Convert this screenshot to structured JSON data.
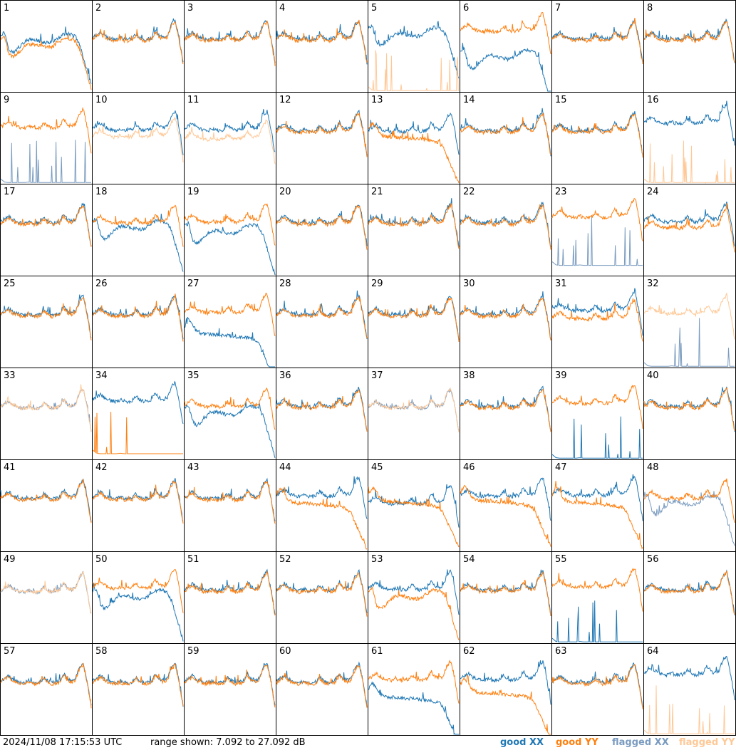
{
  "chart_data": {
    "type": "line",
    "layout": "small-multiples 8x8",
    "panels": [
      "1",
      "2",
      "3",
      "4",
      "5",
      "6",
      "7",
      "8",
      "9",
      "10",
      "11",
      "12",
      "13",
      "14",
      "15",
      "16",
      "17",
      "18",
      "19",
      "20",
      "21",
      "22",
      "23",
      "24",
      "25",
      "26",
      "27",
      "28",
      "29",
      "30",
      "31",
      "32",
      "33",
      "34",
      "35",
      "36",
      "37",
      "38",
      "39",
      "40",
      "41",
      "42",
      "43",
      "44",
      "45",
      "46",
      "47",
      "48",
      "49",
      "50",
      "51",
      "52",
      "53",
      "54",
      "55",
      "56",
      "57",
      "58",
      "59",
      "60",
      "61",
      "62",
      "63",
      "64"
    ],
    "ylim": [
      7.092,
      27.092
    ],
    "profiles": {
      "normal": [
        18.5,
        19.2,
        19.8,
        19.0,
        18.6,
        18.3,
        18.2,
        18.6,
        18.3,
        18.2,
        18.4,
        19.4,
        18.6,
        18.2,
        18.4,
        18.6,
        20.2,
        19.0,
        18.7,
        19.1,
        21.5,
        22.5,
        18.5,
        13.0
      ],
      "dropout": [
        19.0,
        20.5,
        19.5,
        18.0,
        17.5,
        17.3,
        17.3,
        17.2,
        17.2,
        17.1,
        17.0,
        17.0,
        16.9,
        16.8,
        16.7,
        16.6,
        16.5,
        16.3,
        16.0,
        15.0,
        13.0,
        11.0,
        9.0,
        7.1
      ],
      "dip": [
        19.0,
        19.5,
        16.0,
        15.0,
        15.5,
        16.5,
        17.3,
        17.8,
        17.9,
        17.8,
        17.5,
        17.3,
        17.2,
        17.3,
        17.8,
        18.5,
        19.0,
        19.2,
        19.0,
        18.5,
        17.0,
        14.0,
        11.0,
        8.0
      ],
      "spiky_low": [
        8.0,
        7.3,
        7.2,
        7.2,
        7.2,
        7.2,
        7.2,
        7.3,
        7.2,
        7.2,
        7.2,
        7.2,
        7.2,
        7.2,
        7.2,
        7.2,
        7.2,
        7.2,
        7.2,
        7.2,
        7.2,
        7.2,
        7.2,
        7.2
      ]
    },
    "panel_traces": {
      "1": {
        "xx": [
          "dip",
          0.6
        ],
        "yy": [
          "dip",
          -0.4
        ]
      },
      "5": {
        "xx": [
          "dip",
          2.0
        ],
        "yy": [
          "spiky_low",
          0,
          "flagged"
        ]
      },
      "6": {
        "xx": [
          "dip",
          -3.0
        ],
        "yy": [
          "normal",
          2.0
        ]
      },
      "9": {
        "xx": [
          "spiky_low",
          0,
          "flagged"
        ],
        "yy": [
          "normal",
          1.0
        ]
      },
      "10": {
        "xx": [
          "normal",
          0.5
        ],
        "yy": [
          "normal",
          -1.0,
          "flagged"
        ]
      },
      "11": {
        "xx": [
          "normal",
          0.5
        ],
        "yy": [
          "normal",
          -1.5,
          "flagged"
        ]
      },
      "13": {
        "xx": [
          "normal",
          0.2
        ],
        "yy": [
          "dropout",
          0
        ]
      },
      "16": {
        "xx": [
          "normal",
          2.0
        ],
        "yy": [
          "spiky_low",
          0,
          "flagged"
        ]
      },
      "18": {
        "xx": [
          "dip",
          0
        ],
        "yy": [
          "normal",
          0.2
        ]
      },
      "19": {
        "xx": [
          "dip",
          -1.0
        ],
        "yy": [
          "normal",
          0.5
        ]
      },
      "23": {
        "xx": [
          "spiky_low",
          2.0,
          "flagged"
        ],
        "yy": [
          "normal",
          1.5
        ]
      },
      "24": {
        "xx": [
          "normal",
          0.6
        ],
        "yy": [
          "normal",
          -0.8
        ]
      },
      "27": {
        "xx": [
          "dropout",
          -3.0
        ],
        "yy": [
          "normal",
          0.8
        ]
      },
      "31": {
        "xx": [
          "normal",
          1.2
        ],
        "yy": [
          "normal",
          -0.6
        ]
      },
      "32": {
        "xx": [
          "spiky_low",
          0,
          "flagged"
        ],
        "yy": [
          "normal",
          0.5,
          "flagged"
        ]
      },
      "33": {
        "xx": [
          "normal",
          0,
          "flagged"
        ],
        "yy": [
          "normal",
          0,
          "flagged"
        ]
      },
      "34": {
        "xx": [
          "normal",
          1.5
        ],
        "yy": [
          "spiky_low",
          1.0
        ]
      },
      "35": {
        "xx": [
          "dip",
          -0.5
        ],
        "yy": [
          "normal",
          0.3
        ]
      },
      "37": {
        "xx": [
          "normal",
          0,
          "flagged"
        ],
        "yy": [
          "normal",
          0,
          "flagged"
        ]
      },
      "39": {
        "xx": [
          "spiky_low",
          0
        ],
        "yy": [
          "normal",
          1.0
        ]
      },
      "44": {
        "xx": [
          "normal",
          0.8
        ],
        "yy": [
          "dropout",
          0.3
        ]
      },
      "45": {
        "xx": [
          "normal",
          -0.8
        ],
        "yy": [
          "dropout",
          0.6
        ]
      },
      "46": {
        "xx": [
          "normal",
          0.8
        ],
        "yy": [
          "dropout",
          0.8
        ]
      },
      "47": {
        "xx": [
          "normal",
          1.0
        ],
        "yy": [
          "dropout",
          0.5
        ]
      },
      "48": {
        "xx": [
          "dip",
          0,
          "flagged"
        ],
        "yy": [
          "normal",
          0.3
        ]
      },
      "49": {
        "xx": [
          "normal",
          0,
          "flagged"
        ],
        "yy": [
          "normal",
          0,
          "flagged"
        ]
      },
      "50": {
        "xx": [
          "dip",
          -0.5
        ],
        "yy": [
          "normal",
          0.8
        ]
      },
      "53": {
        "xx": [
          "normal",
          0.5
        ],
        "yy": [
          "dip",
          -0.5
        ]
      },
      "55": {
        "xx": [
          "spiky_low",
          0
        ],
        "yy": [
          "normal",
          1.0
        ]
      },
      "61": {
        "xx": [
          "dropout",
          -2.0
        ],
        "yy": [
          "normal",
          0.8
        ]
      },
      "62": {
        "xx": [
          "normal",
          0.8
        ],
        "yy": [
          "dropout",
          -1.0
        ]
      },
      "64": {
        "xx": [
          "normal",
          2.0
        ],
        "yy": [
          "spiky_low",
          0,
          "flagged"
        ]
      }
    },
    "colors": {
      "good_xx": "#1f77b4",
      "good_yy": "#ff7f0e",
      "flagged_xx": "#7a9cc0",
      "flagged_yy": "#ffc896"
    }
  },
  "footer": {
    "timestamp": "2024/11/08 17:15:53 UTC",
    "range_text": "range shown: 7.092 to 27.092 dB",
    "legend": {
      "good_xx": "good XX",
      "good_yy": "good YY",
      "flagged_xx": "flagged XX",
      "flagged_yy": "flagged YY"
    }
  }
}
